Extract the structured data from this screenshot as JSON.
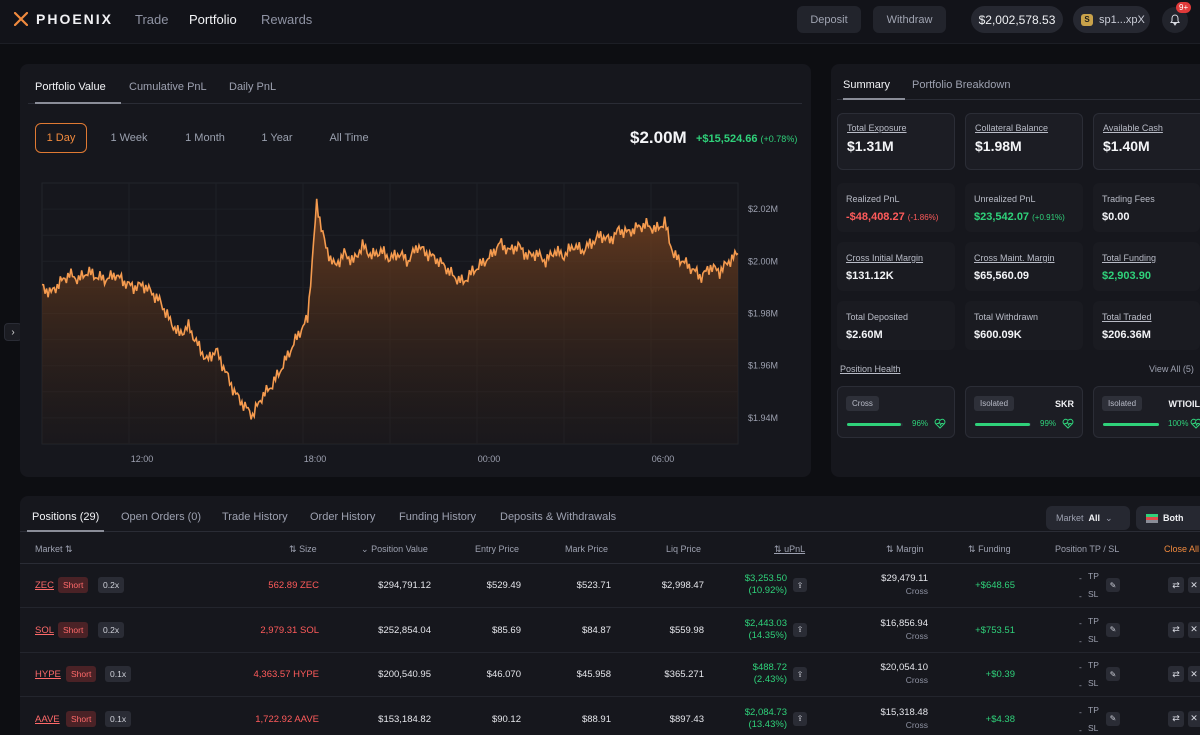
{
  "nav": {
    "brand": "PHOENIX",
    "links": [
      "Trade",
      "Portfolio",
      "Rewards"
    ],
    "deposit": "Deposit",
    "withdraw": "Withdraw",
    "balance": "$2,002,578.53",
    "wallet": "sp1...xpX",
    "notifications": "9+"
  },
  "chart_panel": {
    "tabs": [
      "Portfolio Value",
      "Cumulative PnL",
      "Daily PnL"
    ],
    "ranges": [
      "1 Day",
      "1 Week",
      "1 Month",
      "1 Year",
      "All Time"
    ],
    "value": "$2.00M",
    "change": "+$15,524.66",
    "change_pct": "(+0.78%)"
  },
  "chart_data": {
    "type": "area",
    "title": "",
    "xlabel": "",
    "ylabel": "",
    "x_ticks": [
      "12:00",
      "18:00",
      "00:00",
      "06:00"
    ],
    "y_ticks": [
      "$2.02M",
      "$2.00M",
      "$1.98M",
      "$1.96M",
      "$1.94M"
    ],
    "ylim": [
      1.93,
      2.03
    ],
    "color": "#f59b4f",
    "series": [
      {
        "values": [
          1.99,
          1.988,
          1.992,
          1.995,
          1.993,
          1.996,
          1.994,
          1.993,
          1.995,
          1.992,
          1.99,
          1.991,
          1.988,
          1.984,
          1.977,
          1.972,
          1.975,
          1.968,
          1.962,
          1.966,
          1.958,
          1.95,
          1.945,
          1.941,
          1.948,
          1.952,
          1.958,
          1.965,
          1.972,
          1.978,
          2.022,
          2.005,
          1.998,
          2.003,
          2.0,
          2.006,
          2.002,
          2.004,
          2.001,
          2.003,
          2.0,
          2.006,
          2.003,
          2.001,
          1.998,
          1.994,
          1.992,
          1.996,
          1.999,
          2.002,
          2.007,
          2.004,
          2.006,
          2.002,
          2.003,
          2.0,
          2.004,
          2.002,
          2.006,
          2.004,
          2.007,
          2.01,
          2.008,
          2.012,
          2.011,
          2.013,
          2.014,
          2.012,
          2.015,
          2.002,
          2.0,
          1.997,
          1.994,
          1.998,
          1.996,
          2.0,
          2.003
        ]
      }
    ]
  },
  "summary": {
    "tabs": [
      "Summary",
      "Portfolio Breakdown"
    ],
    "cards": [
      {
        "label": "Total Exposure",
        "value": "$1.31M"
      },
      {
        "label": "Collateral Balance",
        "value": "$1.98M"
      },
      {
        "label": "Available Cash",
        "value": "$1.40M"
      }
    ],
    "stats": [
      {
        "label": "Realized PnL",
        "value": "-$48,408.27",
        "pct": "(-1.86%)",
        "tone": "red",
        "underline": false
      },
      {
        "label": "Unrealized PnL",
        "value": "$23,542.07",
        "pct": "(+0.91%)",
        "tone": "green",
        "underline": false
      },
      {
        "label": "Trading Fees",
        "value": "$0.00",
        "pct": "",
        "tone": "",
        "underline": false
      },
      {
        "label": "Cross Initial Margin",
        "value": "$131.12K",
        "pct": "",
        "tone": "",
        "underline": true
      },
      {
        "label": "Cross Maint. Margin",
        "value": "$65,560.09",
        "pct": "",
        "tone": "",
        "underline": true
      },
      {
        "label": "Total Funding",
        "value": "$2,903.90",
        "pct": "",
        "tone": "green",
        "underline": true
      },
      {
        "label": "Total Deposited",
        "value": "$2.60M",
        "pct": "",
        "tone": "",
        "underline": false
      },
      {
        "label": "Total Withdrawn",
        "value": "$600.09K",
        "pct": "",
        "tone": "",
        "underline": false
      },
      {
        "label": "Total Traded",
        "value": "$206.36M",
        "pct": "",
        "tone": "",
        "underline": true
      }
    ],
    "position_health_label": "Position Health",
    "view_all": "View All (5)",
    "health": [
      {
        "tag": "Cross",
        "name": "",
        "pct": "96%",
        "fill": 0.96
      },
      {
        "tag": "Isolated",
        "name": "SKR",
        "pct": "99%",
        "fill": 0.99
      },
      {
        "tag": "Isolated",
        "name": "WTIOIL",
        "pct": "100%",
        "fill": 1.0
      }
    ]
  },
  "positions": {
    "tabs": [
      "Positions (29)",
      "Open Orders (0)",
      "Trade History",
      "Order History",
      "Funding History",
      "Deposits & Withdrawals"
    ],
    "market_filter_label": "Market",
    "market_filter_value": "All",
    "side_filter": "Both",
    "columns": [
      "Market",
      "Size",
      "Position Value",
      "Entry Price",
      "Mark Price",
      "Liq Price",
      "uPnL",
      "Margin",
      "Funding",
      "Position TP / SL",
      "Close All"
    ],
    "rows": [
      {
        "market": "ZEC",
        "side": "Short",
        "lev": "0.2x",
        "size": "562.89 ZEC",
        "value": "$294,791.12",
        "entry": "$529.49",
        "mark": "$523.71",
        "liq": "$2,998.47",
        "upnl": "$3,253.50",
        "upnl_pct": "(10.92%)",
        "margin": "$29,479.11",
        "margin_type": "Cross",
        "funding": "+$648.65"
      },
      {
        "market": "SOL",
        "side": "Short",
        "lev": "0.2x",
        "size": "2,979.31 SOL",
        "value": "$252,854.04",
        "entry": "$85.69",
        "mark": "$84.87",
        "liq": "$559.98",
        "upnl": "$2,443.03",
        "upnl_pct": "(14.35%)",
        "margin": "$16,856.94",
        "margin_type": "Cross",
        "funding": "+$753.51"
      },
      {
        "market": "HYPE",
        "side": "Short",
        "lev": "0.1x",
        "size": "4,363.57 HYPE",
        "value": "$200,540.95",
        "entry": "$46.070",
        "mark": "$45.958",
        "liq": "$365.271",
        "upnl": "$488.72",
        "upnl_pct": "(2.43%)",
        "margin": "$20,054.10",
        "margin_type": "Cross",
        "funding": "+$0.39"
      },
      {
        "market": "AAVE",
        "side": "Short",
        "lev": "0.1x",
        "size": "1,722.92 AAVE",
        "value": "$153,184.82",
        "entry": "$90.12",
        "mark": "$88.91",
        "liq": "$897.43",
        "upnl": "$2,084.73",
        "upnl_pct": "(13.43%)",
        "margin": "$15,318.48",
        "margin_type": "Cross",
        "funding": "+$4.38"
      }
    ],
    "tp_label": "TP",
    "sl_label": "SL",
    "dash": "-"
  }
}
